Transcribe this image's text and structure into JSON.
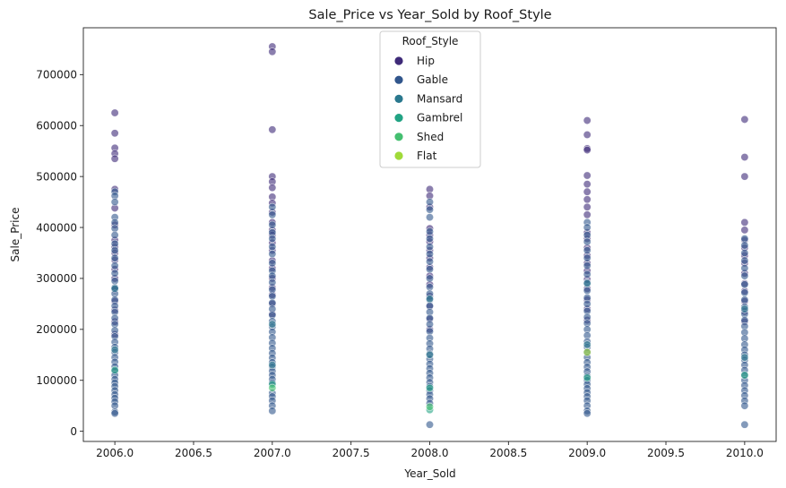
{
  "chart_data": {
    "type": "scatter",
    "title": "Sale_Price vs Year_Sold by Roof_Style",
    "xlabel": "Year_Sold",
    "ylabel": "Sale_Price",
    "xlim": [
      2005.8,
      2010.2
    ],
    "ylim": [
      -20000,
      792000
    ],
    "x_ticks": [
      2006.0,
      2006.5,
      2007.0,
      2007.5,
      2008.0,
      2008.5,
      2009.0,
      2009.5,
      2010.0
    ],
    "x_tick_labels": [
      "2006.0",
      "2006.5",
      "2007.0",
      "2007.5",
      "2008.0",
      "2008.5",
      "2009.0",
      "2009.5",
      "2010.0"
    ],
    "y_ticks": [
      0,
      100000,
      200000,
      300000,
      400000,
      500000,
      600000,
      700000
    ],
    "y_tick_labels": [
      "0",
      "100000",
      "200000",
      "300000",
      "400000",
      "500000",
      "600000",
      "700000"
    ],
    "grid": false,
    "legend": {
      "title": "Roof_Style",
      "placement": "top-center"
    },
    "series": [
      {
        "name": "Hip",
        "color": "#3e2a78",
        "points": [
          [
            2006,
            625000
          ],
          [
            2006,
            585000
          ],
          [
            2006,
            556000
          ],
          [
            2006,
            545000
          ],
          [
            2006,
            535000
          ],
          [
            2006,
            475000
          ],
          [
            2006,
            438000
          ],
          [
            2006,
            405000
          ],
          [
            2006,
            375000
          ],
          [
            2006,
            362000
          ],
          [
            2006,
            350000
          ],
          [
            2006,
            336000
          ],
          [
            2006,
            318000
          ],
          [
            2006,
            300000
          ],
          [
            2006,
            278000
          ],
          [
            2006,
            255000
          ],
          [
            2006,
            238000
          ],
          [
            2006,
            215000
          ],
          [
            2006,
            190000
          ],
          [
            2007,
            755000
          ],
          [
            2007,
            745000
          ],
          [
            2007,
            592000
          ],
          [
            2007,
            500000
          ],
          [
            2007,
            490000
          ],
          [
            2007,
            478000
          ],
          [
            2007,
            460000
          ],
          [
            2007,
            448000
          ],
          [
            2007,
            430000
          ],
          [
            2007,
            410000
          ],
          [
            2007,
            395000
          ],
          [
            2007,
            385000
          ],
          [
            2007,
            370000
          ],
          [
            2007,
            355000
          ],
          [
            2007,
            335000
          ],
          [
            2007,
            320000
          ],
          [
            2007,
            300000
          ],
          [
            2007,
            282000
          ],
          [
            2007,
            268000
          ],
          [
            2007,
            250000
          ],
          [
            2007,
            230000
          ],
          [
            2008,
            475000
          ],
          [
            2008,
            462000
          ],
          [
            2008,
            440000
          ],
          [
            2008,
            398000
          ],
          [
            2008,
            385000
          ],
          [
            2008,
            372000
          ],
          [
            2008,
            355000
          ],
          [
            2008,
            340000
          ],
          [
            2008,
            322000
          ],
          [
            2008,
            305000
          ],
          [
            2008,
            288000
          ],
          [
            2008,
            265000
          ],
          [
            2008,
            245000
          ],
          [
            2008,
            220000
          ],
          [
            2008,
            200000
          ],
          [
            2009,
            610000
          ],
          [
            2009,
            582000
          ],
          [
            2009,
            555000
          ],
          [
            2009,
            552000
          ],
          [
            2009,
            502000
          ],
          [
            2009,
            485000
          ],
          [
            2009,
            470000
          ],
          [
            2009,
            455000
          ],
          [
            2009,
            440000
          ],
          [
            2009,
            425000
          ],
          [
            2009,
            390000
          ],
          [
            2009,
            378000
          ],
          [
            2009,
            360000
          ],
          [
            2009,
            345000
          ],
          [
            2009,
            330000
          ],
          [
            2009,
            315000
          ],
          [
            2009,
            298000
          ],
          [
            2009,
            280000
          ],
          [
            2009,
            258000
          ],
          [
            2009,
            240000
          ],
          [
            2009,
            218000
          ],
          [
            2010,
            612000
          ],
          [
            2010,
            538000
          ],
          [
            2010,
            500000
          ],
          [
            2010,
            410000
          ],
          [
            2010,
            395000
          ],
          [
            2010,
            375000
          ],
          [
            2010,
            360000
          ],
          [
            2010,
            345000
          ],
          [
            2010,
            330000
          ],
          [
            2010,
            310000
          ],
          [
            2010,
            290000
          ],
          [
            2010,
            275000
          ],
          [
            2010,
            255000
          ],
          [
            2010,
            235000
          ],
          [
            2010,
            215000
          ]
        ]
      },
      {
        "name": "Gable",
        "color": "#31568c",
        "points": [
          [
            2006,
            470000
          ],
          [
            2006,
            462000
          ],
          [
            2006,
            450000
          ],
          [
            2006,
            420000
          ],
          [
            2006,
            410000
          ],
          [
            2006,
            398000
          ],
          [
            2006,
            385000
          ],
          [
            2006,
            368000
          ],
          [
            2006,
            355000
          ],
          [
            2006,
            340000
          ],
          [
            2006,
            325000
          ],
          [
            2006,
            310000
          ],
          [
            2006,
            295000
          ],
          [
            2006,
            282000
          ],
          [
            2006,
            270000
          ],
          [
            2006,
            258000
          ],
          [
            2006,
            246000
          ],
          [
            2006,
            234000
          ],
          [
            2006,
            222000
          ],
          [
            2006,
            210000
          ],
          [
            2006,
            198000
          ],
          [
            2006,
            186000
          ],
          [
            2006,
            175000
          ],
          [
            2006,
            165000
          ],
          [
            2006,
            155000
          ],
          [
            2006,
            145000
          ],
          [
            2006,
            136000
          ],
          [
            2006,
            127000
          ],
          [
            2006,
            118000
          ],
          [
            2006,
            110000
          ],
          [
            2006,
            102000
          ],
          [
            2006,
            95000
          ],
          [
            2006,
            88000
          ],
          [
            2006,
            80000
          ],
          [
            2006,
            72000
          ],
          [
            2006,
            65000
          ],
          [
            2006,
            58000
          ],
          [
            2006,
            50000
          ],
          [
            2006,
            38000
          ],
          [
            2006,
            35000
          ],
          [
            2007,
            440000
          ],
          [
            2007,
            425000
          ],
          [
            2007,
            405000
          ],
          [
            2007,
            390000
          ],
          [
            2007,
            378000
          ],
          [
            2007,
            362000
          ],
          [
            2007,
            348000
          ],
          [
            2007,
            330000
          ],
          [
            2007,
            315000
          ],
          [
            2007,
            305000
          ],
          [
            2007,
            292000
          ],
          [
            2007,
            278000
          ],
          [
            2007,
            265000
          ],
          [
            2007,
            252000
          ],
          [
            2007,
            240000
          ],
          [
            2007,
            228000
          ],
          [
            2007,
            216000
          ],
          [
            2007,
            205000
          ],
          [
            2007,
            195000
          ],
          [
            2007,
            184000
          ],
          [
            2007,
            173000
          ],
          [
            2007,
            163000
          ],
          [
            2007,
            153000
          ],
          [
            2007,
            144000
          ],
          [
            2007,
            135000
          ],
          [
            2007,
            126000
          ],
          [
            2007,
            118000
          ],
          [
            2007,
            110000
          ],
          [
            2007,
            102000
          ],
          [
            2007,
            95000
          ],
          [
            2007,
            75000
          ],
          [
            2007,
            68000
          ],
          [
            2007,
            60000
          ],
          [
            2007,
            50000
          ],
          [
            2007,
            40000
          ],
          [
            2008,
            450000
          ],
          [
            2008,
            435000
          ],
          [
            2008,
            420000
          ],
          [
            2008,
            392000
          ],
          [
            2008,
            378000
          ],
          [
            2008,
            362000
          ],
          [
            2008,
            348000
          ],
          [
            2008,
            333000
          ],
          [
            2008,
            318000
          ],
          [
            2008,
            300000
          ],
          [
            2008,
            283000
          ],
          [
            2008,
            270000
          ],
          [
            2008,
            258000
          ],
          [
            2008,
            246000
          ],
          [
            2008,
            234000
          ],
          [
            2008,
            222000
          ],
          [
            2008,
            210000
          ],
          [
            2008,
            196000
          ],
          [
            2008,
            183000
          ],
          [
            2008,
            172000
          ],
          [
            2008,
            162000
          ],
          [
            2008,
            152000
          ],
          [
            2008,
            142000
          ],
          [
            2008,
            132000
          ],
          [
            2008,
            123000
          ],
          [
            2008,
            114000
          ],
          [
            2008,
            105000
          ],
          [
            2008,
            96000
          ],
          [
            2008,
            88000
          ],
          [
            2008,
            80000
          ],
          [
            2008,
            72000
          ],
          [
            2008,
            64000
          ],
          [
            2008,
            55000
          ],
          [
            2008,
            13000
          ],
          [
            2009,
            410000
          ],
          [
            2009,
            400000
          ],
          [
            2009,
            385000
          ],
          [
            2009,
            372000
          ],
          [
            2009,
            355000
          ],
          [
            2009,
            340000
          ],
          [
            2009,
            325000
          ],
          [
            2009,
            308000
          ],
          [
            2009,
            292000
          ],
          [
            2009,
            276000
          ],
          [
            2009,
            262000
          ],
          [
            2009,
            250000
          ],
          [
            2009,
            236000
          ],
          [
            2009,
            224000
          ],
          [
            2009,
            212000
          ],
          [
            2009,
            200000
          ],
          [
            2009,
            188000
          ],
          [
            2009,
            176000
          ],
          [
            2009,
            165000
          ],
          [
            2009,
            155000
          ],
          [
            2009,
            145000
          ],
          [
            2009,
            135000
          ],
          [
            2009,
            126000
          ],
          [
            2009,
            117000
          ],
          [
            2009,
            108000
          ],
          [
            2009,
            100000
          ],
          [
            2009,
            92000
          ],
          [
            2009,
            84000
          ],
          [
            2009,
            76000
          ],
          [
            2009,
            68000
          ],
          [
            2009,
            60000
          ],
          [
            2009,
            50000
          ],
          [
            2009,
            40000
          ],
          [
            2009,
            35000
          ],
          [
            2010,
            378000
          ],
          [
            2010,
            365000
          ],
          [
            2010,
            350000
          ],
          [
            2010,
            335000
          ],
          [
            2010,
            320000
          ],
          [
            2010,
            305000
          ],
          [
            2010,
            288000
          ],
          [
            2010,
            272000
          ],
          [
            2010,
            258000
          ],
          [
            2010,
            244000
          ],
          [
            2010,
            230000
          ],
          [
            2010,
            218000
          ],
          [
            2010,
            206000
          ],
          [
            2010,
            194000
          ],
          [
            2010,
            182000
          ],
          [
            2010,
            170000
          ],
          [
            2010,
            160000
          ],
          [
            2010,
            150000
          ],
          [
            2010,
            140000
          ],
          [
            2010,
            130000
          ],
          [
            2010,
            120000
          ],
          [
            2010,
            110000
          ],
          [
            2010,
            100000
          ],
          [
            2010,
            90000
          ],
          [
            2010,
            80000
          ],
          [
            2010,
            70000
          ],
          [
            2010,
            60000
          ],
          [
            2010,
            50000
          ],
          [
            2010,
            13000
          ]
        ]
      },
      {
        "name": "Mansard",
        "color": "#2a788e",
        "points": [
          [
            2006,
            280000
          ],
          [
            2006,
            160000
          ],
          [
            2007,
            210000
          ],
          [
            2007,
            130000
          ],
          [
            2008,
            260000
          ],
          [
            2008,
            150000
          ],
          [
            2009,
            290000
          ],
          [
            2009,
            170000
          ],
          [
            2010,
            240000
          ],
          [
            2010,
            145000
          ]
        ]
      },
      {
        "name": "Gambrel",
        "color": "#22a384",
        "points": [
          [
            2006,
            120000
          ],
          [
            2007,
            92000
          ],
          [
            2008,
            85000
          ],
          [
            2008,
            42000
          ],
          [
            2009,
            105000
          ],
          [
            2010,
            110000
          ]
        ]
      },
      {
        "name": "Shed",
        "color": "#44bf70",
        "points": [
          [
            2007,
            85000
          ],
          [
            2008,
            48000
          ]
        ]
      },
      {
        "name": "Flat",
        "color": "#a0da39",
        "points": [
          [
            2009,
            155000
          ]
        ]
      }
    ]
  }
}
